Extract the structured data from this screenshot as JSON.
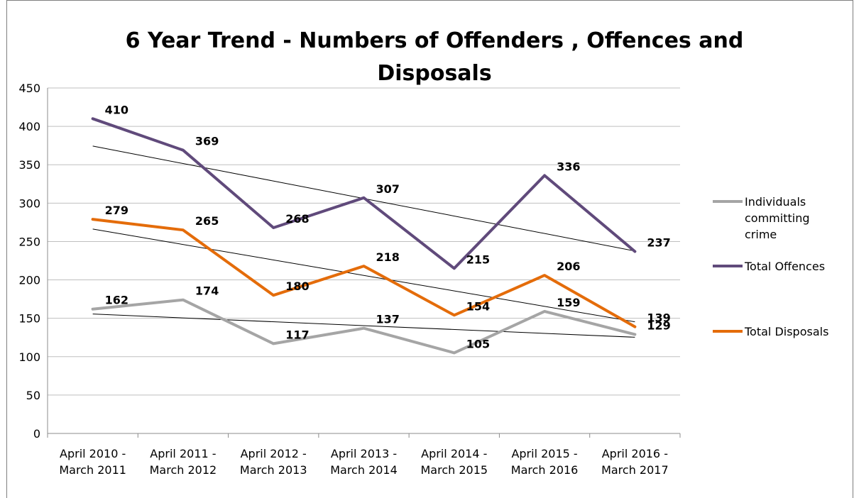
{
  "chart_data": {
    "type": "line",
    "title": "6  Year Trend - Numbers of Offenders , Offences and Disposals",
    "title_lines": [
      "6  Year Trend - Numbers of Offenders , Offences and",
      "Disposals"
    ],
    "categories": [
      [
        "April 2010 -",
        "March 2011"
      ],
      [
        "April 2011 -",
        "March 2012"
      ],
      [
        "April 2012 -",
        "March 2013"
      ],
      [
        "April 2013 -",
        "March 2014"
      ],
      [
        "April 2014 -",
        "March 2015"
      ],
      [
        "April 2015 -",
        "March 2016"
      ],
      [
        "April 2016 -",
        "March 2017"
      ]
    ],
    "ylim": [
      0,
      450
    ],
    "yticks": [
      0,
      50,
      100,
      150,
      200,
      250,
      300,
      350,
      400,
      450
    ],
    "grid": true,
    "legend_position": "right",
    "trendlines": "linear",
    "series": [
      {
        "name": "Individuals committing crime",
        "legend_lines": [
          "Individuals",
          "committing",
          "crime"
        ],
        "color": "#a5a5a5",
        "values": [
          162,
          174,
          117,
          137,
          105,
          159,
          129
        ]
      },
      {
        "name": "Total Offences",
        "legend_lines": [
          "Total Offences"
        ],
        "color": "#604a7b",
        "values": [
          410,
          369,
          268,
          307,
          215,
          336,
          237
        ]
      },
      {
        "name": "Total Disposals",
        "legend_lines": [
          "Total Disposals"
        ],
        "color": "#e46c0a",
        "values": [
          279,
          265,
          180,
          218,
          154,
          206,
          139
        ]
      }
    ]
  }
}
